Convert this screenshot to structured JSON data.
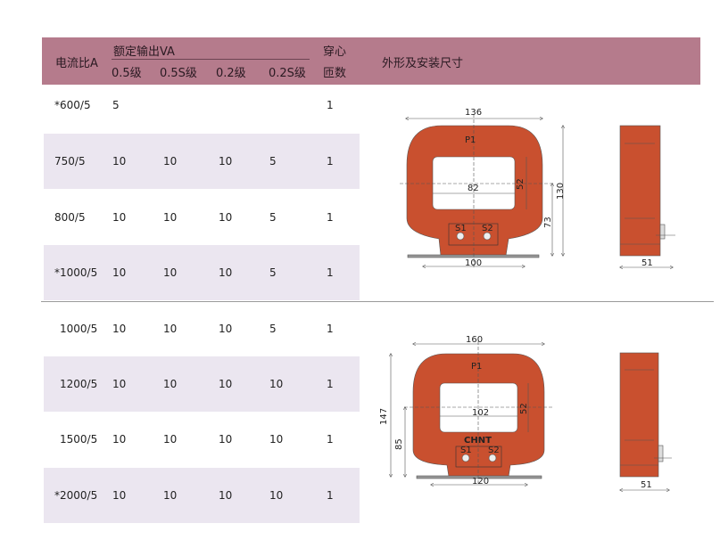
{
  "header": {
    "ratio": "电流比A",
    "rated_output": "额定输出VA",
    "classes": [
      "0.5级",
      "0.5S级",
      "0.2级",
      "0.2S级"
    ],
    "turns_line1": "穿心",
    "turns_line2": "匝数",
    "dimensions": "外形及安装尺寸"
  },
  "rows": [
    {
      "ratio": "*600/5",
      "c05": "5",
      "c05s": "",
      "c02": "",
      "c02s": "",
      "turns": "1"
    },
    {
      "ratio": "750/5",
      "c05": "10",
      "c05s": "10",
      "c02": "10",
      "c02s": "5",
      "turns": "1"
    },
    {
      "ratio": "800/5",
      "c05": "10",
      "c05s": "10",
      "c02": "10",
      "c02s": "5",
      "turns": "1"
    },
    {
      "ratio": "*1000/5",
      "c05": "10",
      "c05s": "10",
      "c02": "10",
      "c02s": "5",
      "turns": "1"
    },
    {
      "ratio": "1000/5",
      "c05": "10",
      "c05s": "10",
      "c02": "10",
      "c02s": "5",
      "turns": "1"
    },
    {
      "ratio": "1200/5",
      "c05": "10",
      "c05s": "10",
      "c02": "10",
      "c02s": "10",
      "turns": "1"
    },
    {
      "ratio": "1500/5",
      "c05": "10",
      "c05s": "10",
      "c02": "10",
      "c02s": "10",
      "turns": "1"
    },
    {
      "ratio": "*2000/5",
      "c05": "10",
      "c05s": "10",
      "c02": "10",
      "c02s": "10",
      "turns": "1"
    }
  ],
  "drawing1": {
    "width": "136",
    "height": "130",
    "window_w": "82",
    "window_h": "52",
    "center_h": "73",
    "base": "100",
    "depth": "51",
    "p1": "P1",
    "s1": "S1",
    "s2": "S2"
  },
  "drawing2": {
    "width": "160",
    "height": "147",
    "window_w": "102",
    "window_h": "52",
    "center_h": "85",
    "base": "120",
    "depth": "51",
    "p1": "P1",
    "s1": "S1",
    "s2": "S2",
    "brand": "CHNT"
  },
  "colors": {
    "header": "#b57b8c",
    "row_shade": "#ebe6f0",
    "body": "#c9502f"
  }
}
